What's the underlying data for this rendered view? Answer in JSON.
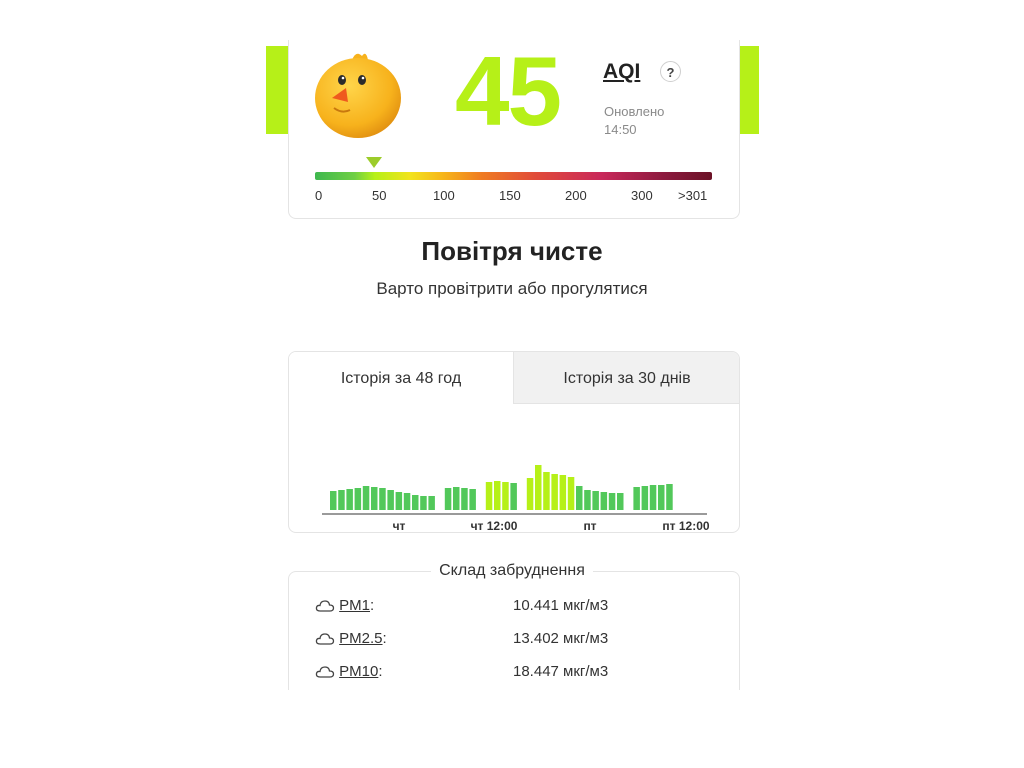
{
  "aqi": {
    "value": "45",
    "label": "AQI",
    "help": "?",
    "updated_label": "Оновлено",
    "updated_time": "14:50",
    "level_color": "#b6f018",
    "pointer_value": 45
  },
  "scale": {
    "ticks": [
      "0",
      "50",
      "100",
      "150",
      "200",
      "300",
      ">301"
    ]
  },
  "status": {
    "headline": "Повітря чисте",
    "advice": "Варто провітрити або прогулятися"
  },
  "history": {
    "tabs": [
      {
        "label": "Історія за 48 год",
        "active": true
      },
      {
        "label": "Історія за 30 днів",
        "active": false
      }
    ]
  },
  "chart_data": {
    "type": "bar",
    "x_tick_labels": [
      "чт",
      "чт 12:00",
      "пт",
      "пт 12:00"
    ],
    "values": [
      19,
      20,
      21,
      22,
      24,
      23,
      22,
      20,
      18,
      17,
      15,
      14,
      14,
      null,
      22,
      23,
      22,
      21,
      null,
      28,
      29,
      28,
      27,
      null,
      32,
      45,
      38,
      36,
      35,
      33,
      24,
      20,
      19,
      18,
      17,
      17,
      null,
      23,
      24,
      25,
      25,
      26
    ],
    "colors": {
      "good": "#52c85a",
      "moderate": "#b6f018"
    },
    "grid": false
  },
  "pollution": {
    "title": "Склад забруднення",
    "items": [
      {
        "name": "PM1",
        "value": "10.441 мкг/м3"
      },
      {
        "name": "PM2.5",
        "value": "13.402 мкг/м3"
      },
      {
        "name": "PM10",
        "value": "18.447 мкг/м3"
      }
    ]
  },
  "icons": {
    "mascot": "chick-mascot",
    "pollutant": "cloud-icon"
  }
}
